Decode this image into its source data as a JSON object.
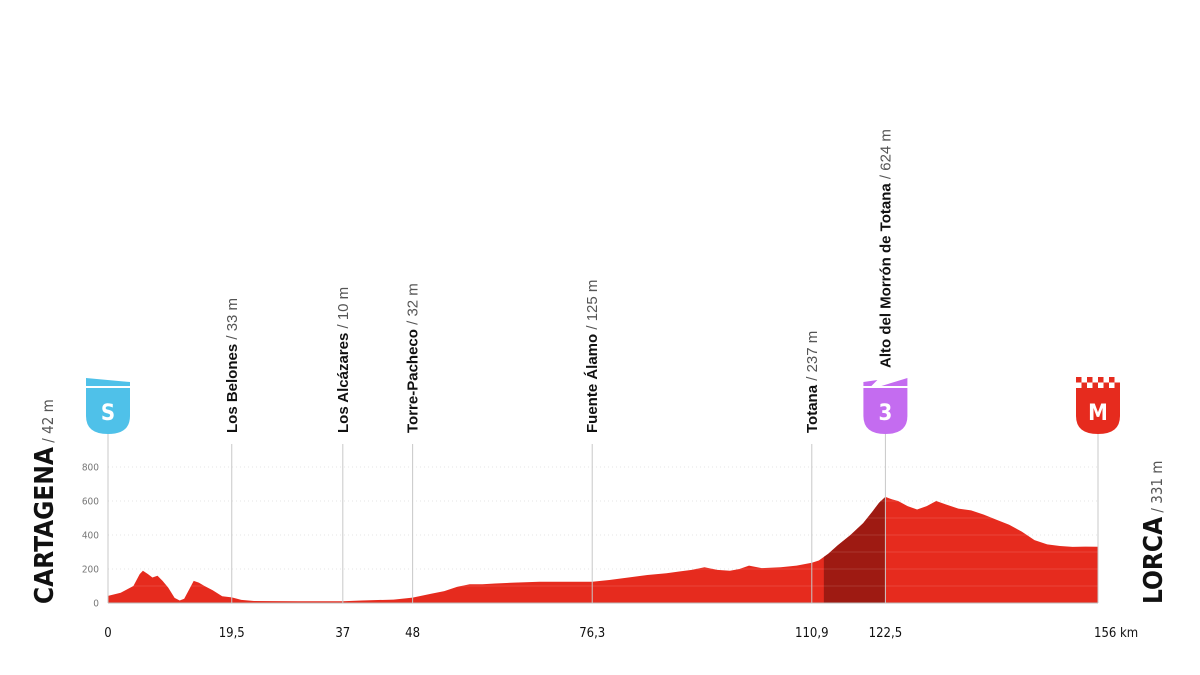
{
  "colors": {
    "profile": "#e62b1e",
    "climb_shade": "#9e1a12",
    "start_badge": "#4fc1e9",
    "climb_badge": "#c46cf0",
    "finish_badge": "#e62b1e",
    "axis_text": "#111111",
    "tick_text": "#777777",
    "grid": "#e6e6e6"
  },
  "start": {
    "name": "CARTAGENA",
    "alt": "/ 42 m",
    "badge": "S"
  },
  "finish": {
    "name": "LORCA",
    "alt": "/ 331 m",
    "badge": "M"
  },
  "chart_data": {
    "type": "area",
    "ylim": [
      0,
      800
    ],
    "y_ticks": [
      "0",
      "200",
      "400",
      "600",
      "800"
    ],
    "x_range_km": [
      0,
      156
    ],
    "x_unit": "km",
    "x_ticks": [
      {
        "km": 0,
        "label": "0"
      },
      {
        "km": 19.5,
        "label": "19,5"
      },
      {
        "km": 37,
        "label": "37"
      },
      {
        "km": 48,
        "label": "48"
      },
      {
        "km": 76.3,
        "label": "76,3"
      },
      {
        "km": 110.9,
        "label": "110,9"
      },
      {
        "km": 122.5,
        "label": "122,5"
      },
      {
        "km": 156,
        "label": "156 km"
      }
    ],
    "profile": {
      "km": [
        0,
        2,
        4,
        5,
        5.5,
        6.3,
        7,
        7.8,
        8.6,
        9.5,
        10.5,
        11.3,
        12,
        12.8,
        13.5,
        14.3,
        15.2,
        16.5,
        18,
        19.5,
        21,
        23,
        26,
        30,
        37,
        40,
        45,
        48,
        51,
        53,
        55,
        57,
        59,
        61,
        64,
        68,
        72,
        76.3,
        79,
        82,
        85,
        88,
        90,
        92,
        94,
        96,
        98,
        99.5,
        101,
        103,
        106,
        108.5,
        110.9,
        112,
        113.5,
        115,
        117,
        119,
        120.5,
        121.5,
        122.5,
        123.5,
        124.5,
        126,
        127.5,
        129,
        130.5,
        132,
        134,
        136,
        138,
        140,
        142,
        144,
        146,
        148,
        150,
        152,
        154,
        156
      ],
      "elevation": [
        42,
        60,
        100,
        170,
        190,
        170,
        150,
        160,
        130,
        90,
        30,
        15,
        25,
        80,
        130,
        120,
        100,
        75,
        40,
        33,
        18,
        12,
        11,
        10,
        10,
        15,
        20,
        32,
        55,
        70,
        95,
        110,
        110,
        115,
        120,
        125,
        125,
        125,
        135,
        150,
        165,
        175,
        185,
        195,
        210,
        195,
        190,
        200,
        220,
        205,
        210,
        220,
        237,
        250,
        290,
        340,
        400,
        470,
        540,
        590,
        624,
        610,
        600,
        570,
        550,
        570,
        600,
        580,
        555,
        545,
        520,
        490,
        460,
        420,
        370,
        345,
        335,
        330,
        332,
        331
      ]
    },
    "shaded_climb_km": [
      112.8,
      122.5
    ],
    "waypoints": [
      {
        "km": 19.5,
        "name": "Los Belones",
        "alt": "/ 33 m"
      },
      {
        "km": 37,
        "name": "Los Alcázares",
        "alt": "/ 10 m"
      },
      {
        "km": 48,
        "name": "Torre-Pacheco",
        "alt": "/ 32 m"
      },
      {
        "km": 76.3,
        "name": "Fuente Álamo",
        "alt": "/ 125 m"
      },
      {
        "km": 110.9,
        "name": "Totana",
        "alt": "/ 237 m"
      },
      {
        "km": 122.5,
        "name": "Alto del Morrón de Totana",
        "alt": "/ 624 m",
        "badge": "3"
      }
    ]
  }
}
